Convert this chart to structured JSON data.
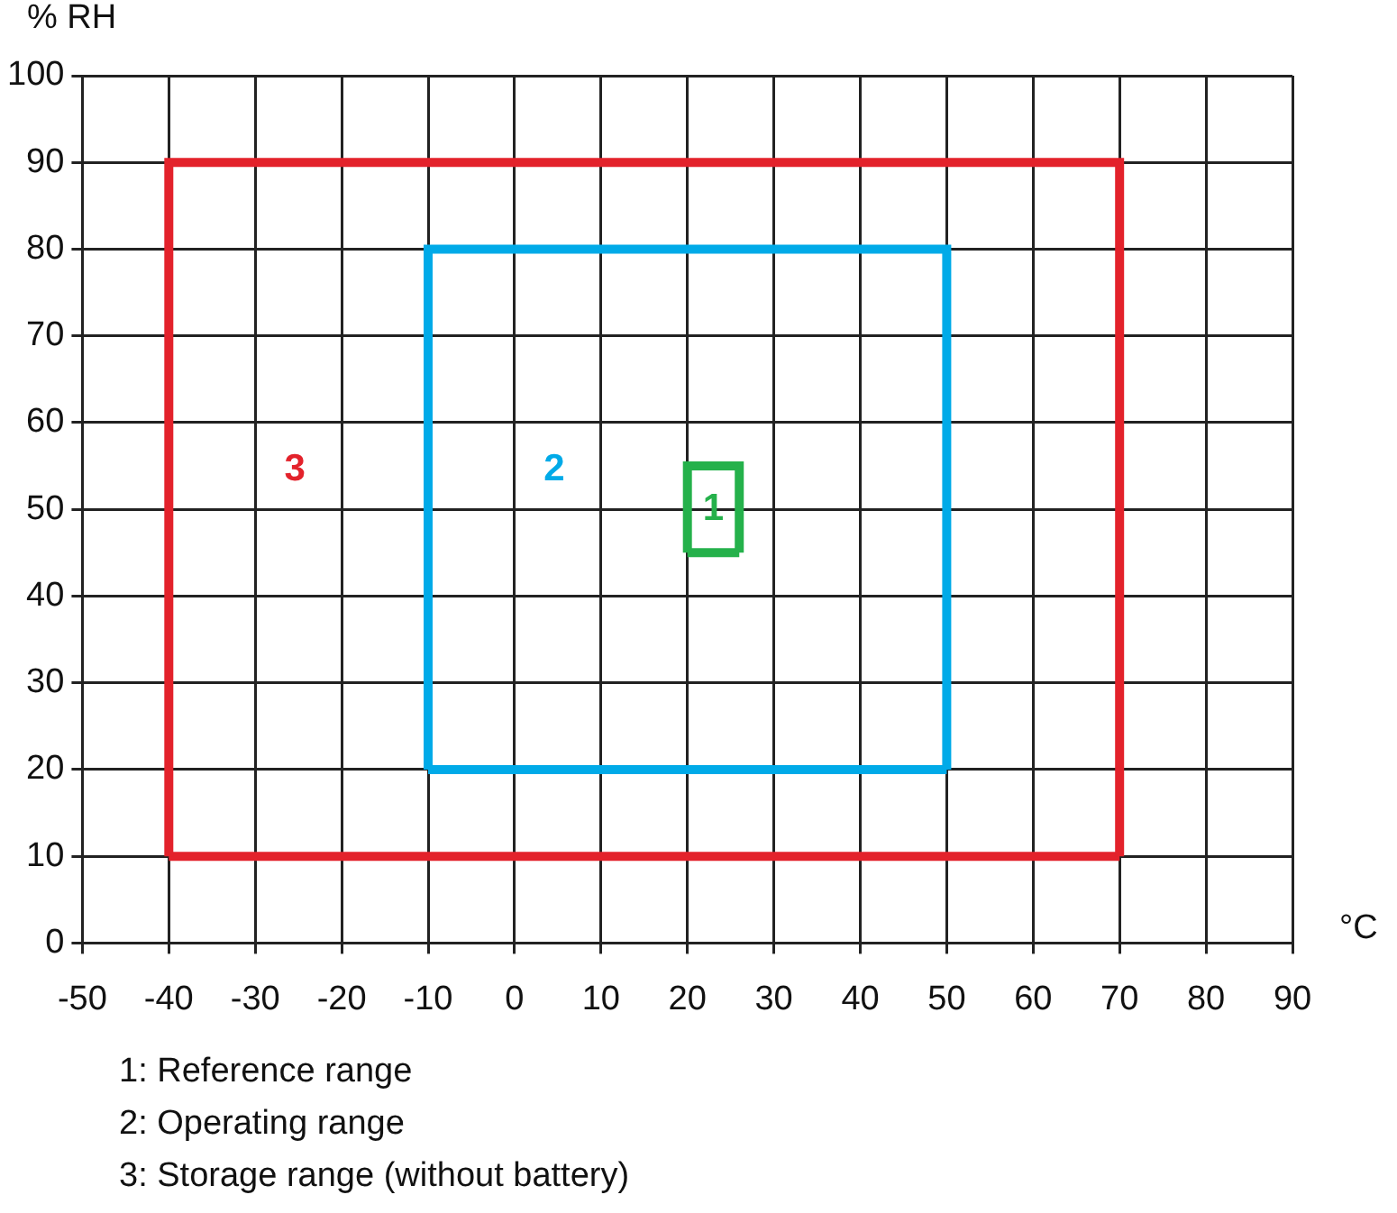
{
  "chart_data": {
    "type": "line",
    "xlabel": "°C",
    "ylabel": "% RH",
    "series": [
      {
        "name": "3",
        "color": "#e3222b",
        "x": [
          -40,
          -40,
          70,
          70
        ],
        "values": [
          10,
          90,
          90,
          10
        ]
      },
      {
        "color": "#e3222b",
        "x": [
          -40,
          70
        ],
        "values": [
          10,
          10
        ]
      },
      {
        "name": "2",
        "color": "#00aae8",
        "x": [
          -10,
          -10,
          50,
          50
        ],
        "values": [
          20,
          80,
          80,
          20
        ]
      },
      {
        "color": "#00aae8",
        "x": [
          -10,
          50
        ],
        "values": [
          20,
          20
        ]
      },
      {
        "name": "1",
        "color": "#25b14b",
        "x": [
          20,
          20,
          26,
          26
        ],
        "values": [
          45,
          55,
          55,
          45
        ]
      },
      {
        "color": "#25b14b",
        "x": [
          20,
          26
        ],
        "values": [
          45,
          45
        ]
      }
    ],
    "xlim": [
      -50,
      90
    ],
    "xticks": [
      -50,
      -40,
      -30,
      -20,
      -10,
      0,
      10,
      20,
      30,
      40,
      50,
      60,
      70,
      80,
      90
    ],
    "ylim": [
      0,
      100
    ],
    "yticks": [
      0,
      10,
      20,
      30,
      40,
      50,
      60,
      70,
      80,
      90,
      100
    ],
    "grid": true,
    "legend": false,
    "marker": "none",
    "line_style": "solid",
    "annotations": [
      "1: Reference range",
      "2: Operating range",
      "3: Storage range (without battery)"
    ]
  }
}
